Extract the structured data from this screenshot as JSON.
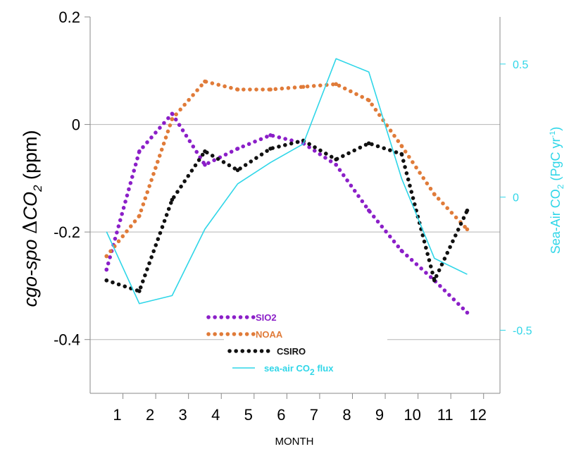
{
  "chart_data": {
    "type": "line",
    "x": [
      0.5,
      1.5,
      2.5,
      3.5,
      4.5,
      5.5,
      6.5,
      7.5,
      8.5,
      9.5,
      10.5,
      11.5
    ],
    "x_ticks": [
      "1",
      "2",
      "3",
      "4",
      "5",
      "6",
      "7",
      "8",
      "9",
      "10",
      "11",
      "12"
    ],
    "xlim": [
      0,
      12.5
    ],
    "xlabel": "MONTH",
    "ylabel_left": {
      "prefix": "cgo-spo ",
      "delta": "Δ",
      "main": "CO",
      "sub": "2",
      "suffix": " (ppm)"
    },
    "ylabel_right": {
      "main": "Sea-Air CO",
      "sub": "2",
      "mid": " (PgC yr",
      "sup": "-1",
      "suffix": ")"
    },
    "ylim_left": [
      -0.5,
      0.2
    ],
    "ylim_right": [
      -0.737,
      0.677
    ],
    "y_ticks_left": [
      {
        "value": 0.2,
        "label": "0.2"
      },
      {
        "value": 0,
        "label": "0"
      },
      {
        "value": -0.2,
        "label": "-0.2"
      },
      {
        "value": -0.4,
        "label": "-0.4"
      }
    ],
    "y_ticks_right": [
      {
        "value": 0.5,
        "label": "0.5"
      },
      {
        "value": 0,
        "label": "0"
      },
      {
        "value": -0.5,
        "label": "-0.5"
      }
    ],
    "gridlines_left": [
      0,
      -0.2,
      -0.4
    ],
    "grid": true,
    "legend_position": "bottom-center",
    "colors": {
      "sio2": "#8b1fc8",
      "noaa": "#e07b39",
      "csiro": "#111111",
      "flux": "#2fd6e8",
      "axis": "#8a8a8a",
      "grid": "#b5b5b5"
    },
    "series": [
      {
        "name": "SIO2",
        "key": "sio2",
        "axis": "left",
        "style": "dotted",
        "values": [
          -0.27,
          -0.05,
          0.02,
          -0.075,
          -0.045,
          -0.02,
          -0.035,
          -0.075,
          -0.16,
          -0.235,
          -0.29,
          -0.35
        ]
      },
      {
        "name": "NOAA",
        "key": "noaa",
        "axis": "left",
        "style": "dotted",
        "values": [
          -0.245,
          -0.17,
          0.01,
          0.08,
          0.065,
          0.065,
          0.07,
          0.075,
          0.045,
          -0.04,
          -0.13,
          -0.195
        ]
      },
      {
        "name": "CSIRO",
        "key": "csiro",
        "axis": "left",
        "style": "dotted",
        "values": [
          -0.29,
          -0.31,
          -0.14,
          -0.05,
          -0.085,
          -0.045,
          -0.03,
          -0.065,
          -0.035,
          -0.055,
          -0.29,
          -0.16
        ]
      },
      {
        "name": "sea-air CO₂ flux",
        "legend": {
          "main": "sea-air CO",
          "sub": "2",
          "suffix": " flux"
        },
        "key": "flux",
        "axis": "right",
        "style": "solid",
        "values": [
          -0.13,
          -0.4,
          -0.37,
          -0.12,
          0.05,
          0.13,
          0.2,
          0.52,
          0.47,
          0.07,
          -0.23,
          -0.29
        ]
      }
    ]
  }
}
